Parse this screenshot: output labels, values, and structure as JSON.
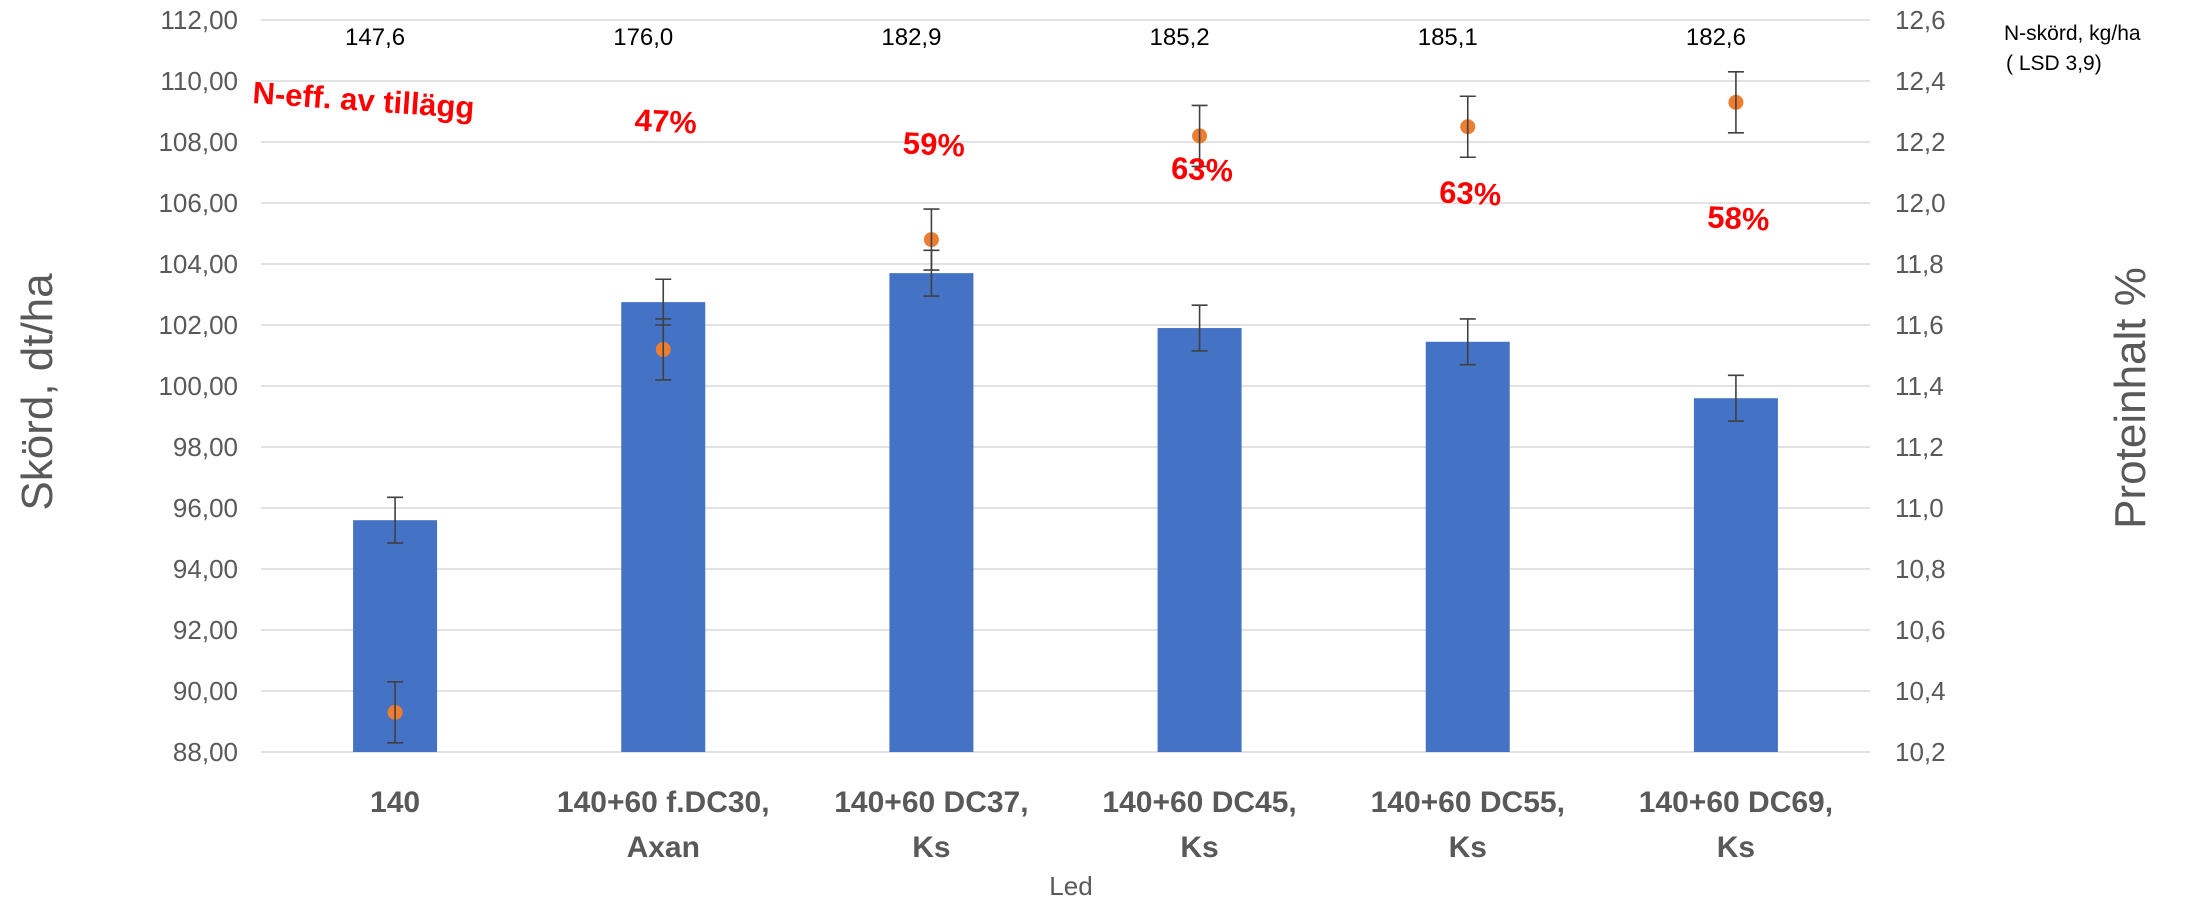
{
  "chart_data": {
    "type": "bar",
    "xlabel": "Led",
    "ylabel_left": "Skörd, dt/ha",
    "ylabel_right": "Proteinhalt %",
    "ylim_left": [
      88,
      112
    ],
    "ylim_right": [
      10.2,
      12.6
    ],
    "yticks_left": [
      "88,00",
      "90,00",
      "92,00",
      "94,00",
      "96,00",
      "98,00",
      "100,00",
      "102,00",
      "104,00",
      "106,00",
      "108,00",
      "110,00",
      "112,00"
    ],
    "yticks_right": [
      "10,2",
      "10,4",
      "10,6",
      "10,8",
      "11,0",
      "11,2",
      "11,4",
      "11,6",
      "11,8",
      "12,0",
      "12,2",
      "12,4",
      "12,6"
    ],
    "grid": true,
    "categories": [
      [
        "140"
      ],
      [
        "140+60 f.DC30,",
        "Axan"
      ],
      [
        "140+60 DC37,",
        "Ks"
      ],
      [
        "140+60 DC45,",
        "Ks"
      ],
      [
        "140+60 DC55,",
        "Ks"
      ],
      [
        "140+60 DC69,",
        "Ks"
      ]
    ],
    "bar_color": "#4472c4",
    "point_color": "#ed7d31",
    "bars": {
      "values": [
        95.6,
        102.75,
        103.7,
        101.9,
        101.45,
        99.6
      ],
      "error": [
        0.75,
        0.75,
        0.75,
        0.75,
        0.75,
        0.75
      ]
    },
    "points": {
      "values": [
        10.33,
        11.52,
        11.88,
        12.22,
        12.25,
        12.33
      ],
      "error": [
        0.1,
        0.1,
        0.1,
        0.1,
        0.1,
        0.1
      ]
    },
    "n_harvest_labels": [
      "147,6",
      "176,0",
      "182,9",
      "185,2",
      "185,1",
      "182,6"
    ],
    "n_harvest_legend": [
      "N-skörd, kg/ha",
      "( LSD 3,9)"
    ],
    "n_efficiency_title": "N-eff. av tillägg",
    "n_efficiency_labels": [
      "",
      "47%",
      "59%",
      "63%",
      "63%",
      "58%"
    ]
  }
}
